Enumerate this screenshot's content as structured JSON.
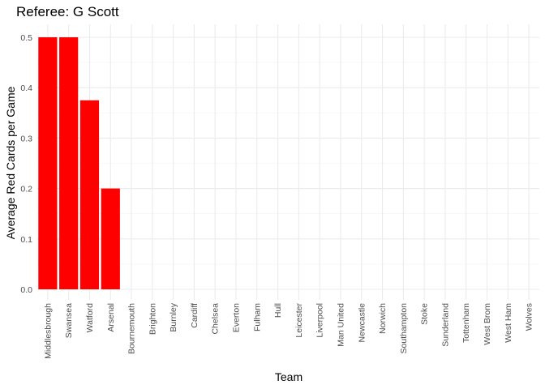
{
  "chart_data": {
    "type": "bar",
    "title": "Referee: G Scott",
    "xlabel": "Team",
    "ylabel": "Average Red Cards per Game",
    "categories": [
      "Middlesbrough",
      "Swansea",
      "Watford",
      "Arsenal",
      "Bournemouth",
      "Brighton",
      "Burnley",
      "Cardiff",
      "Chelsea",
      "Everton",
      "Fulham",
      "Hull",
      "Leicester",
      "Liverpool",
      "Man United",
      "Newcastle",
      "Norwich",
      "Southampton",
      "Stoke",
      "Sunderland",
      "Tottenham",
      "West Brom",
      "West Ham",
      "Wolves"
    ],
    "values": [
      0.5,
      0.5,
      0.375,
      0.2,
      0,
      0,
      0,
      0,
      0,
      0,
      0,
      0,
      0,
      0,
      0,
      0,
      0,
      0,
      0,
      0,
      0,
      0,
      0,
      0
    ],
    "yticks": [
      "0.0",
      "0.1",
      "0.2",
      "0.3",
      "0.4",
      "0.5"
    ],
    "ylim": [
      0,
      0.5
    ],
    "grid": true,
    "bar_color": "#ff0000"
  }
}
